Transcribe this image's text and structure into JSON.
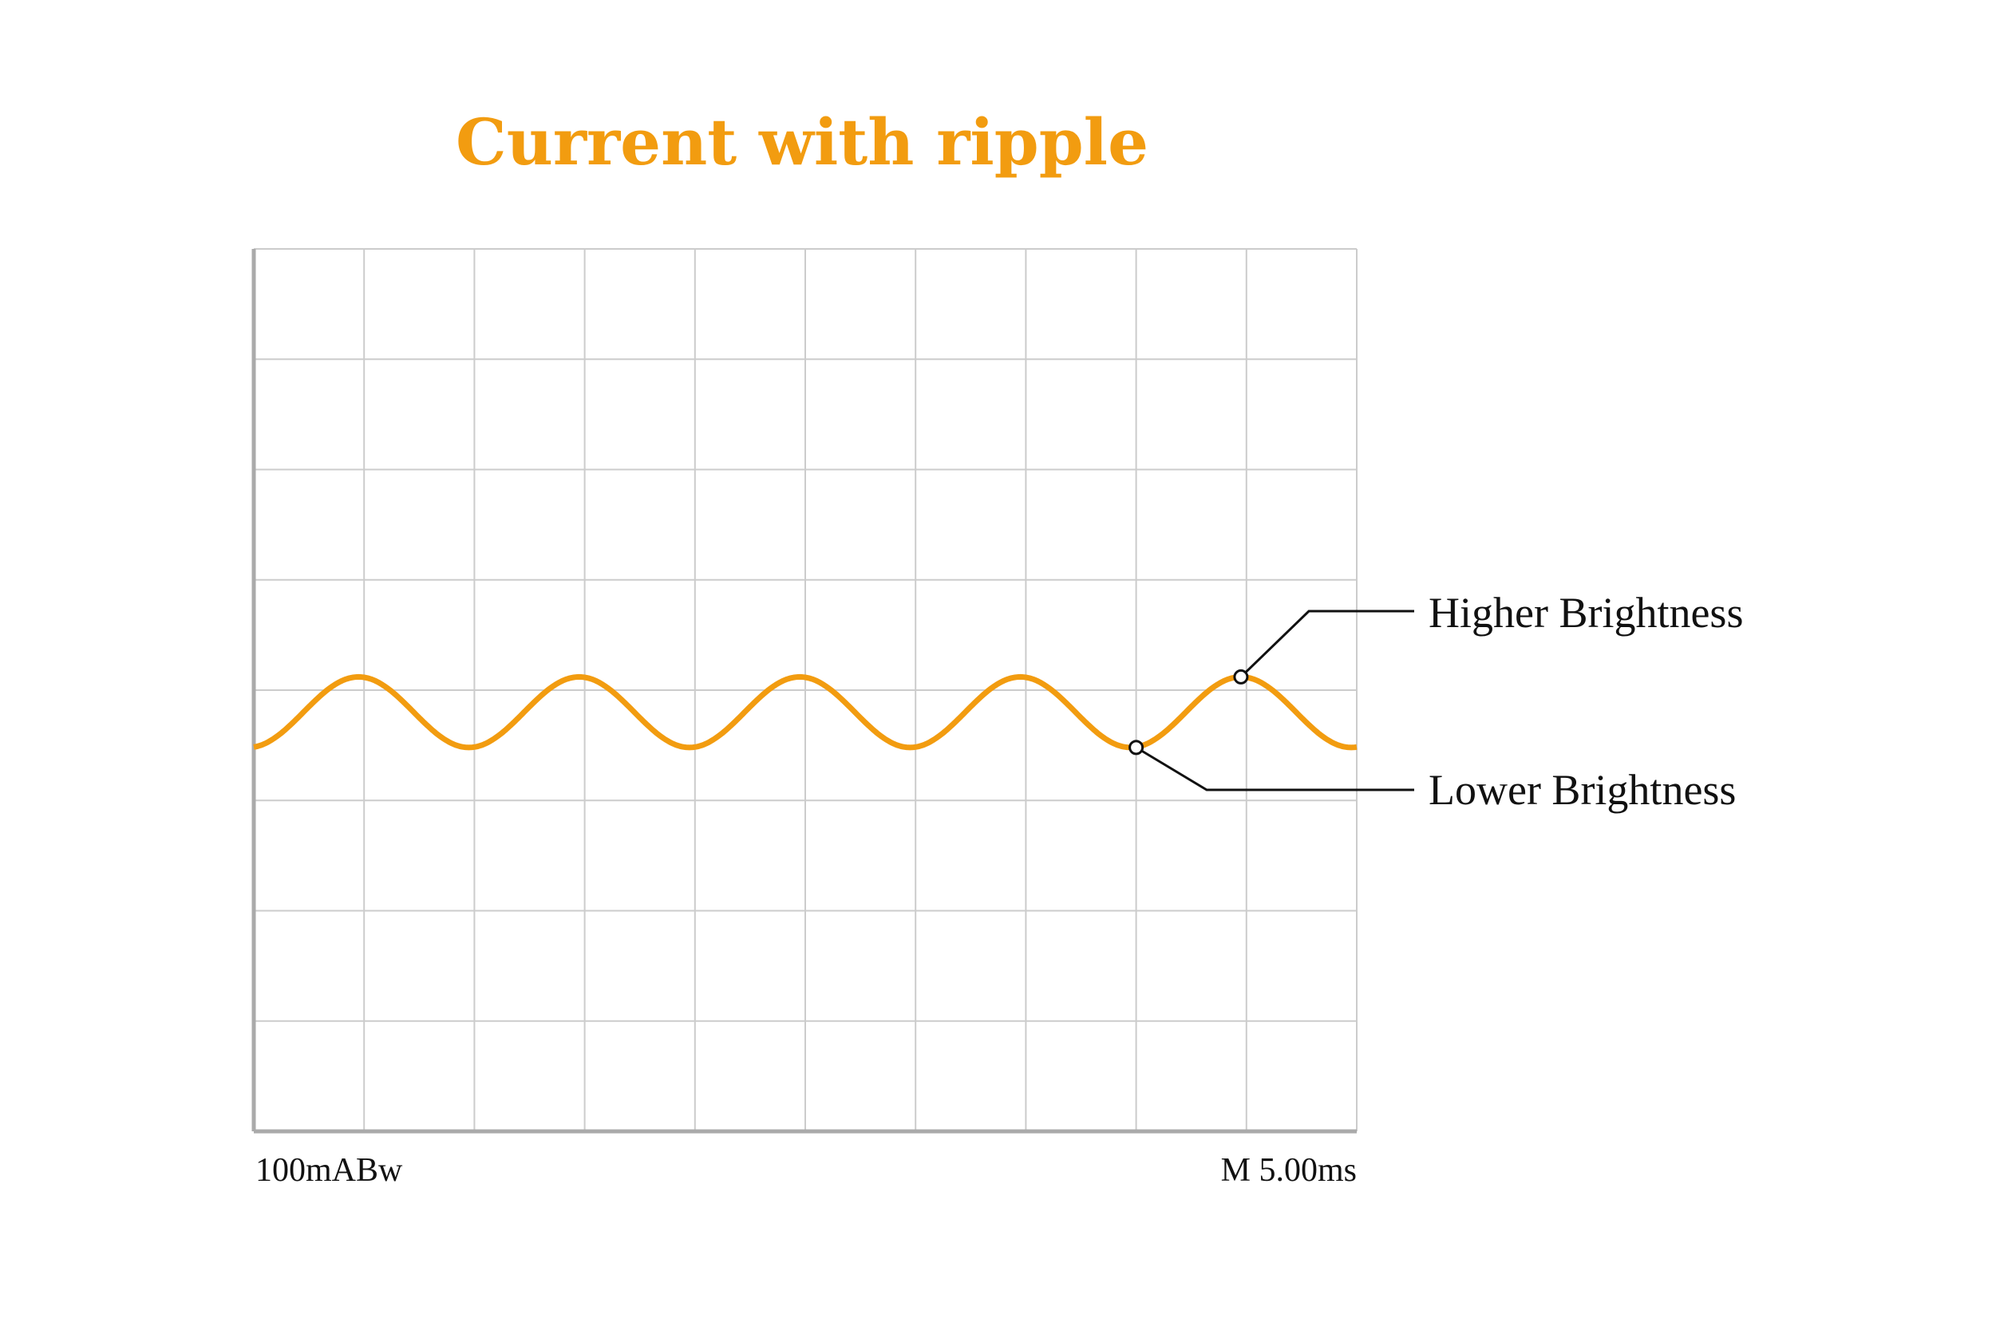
{
  "chart_data": {
    "type": "line",
    "title": "Current with ripple",
    "grid": true,
    "scope_labels": {
      "channel_scale": "100mABw",
      "timebase": "M 5.00ms"
    },
    "xlim": [
      0,
      10
    ],
    "ylim": [
      -4,
      4
    ],
    "x_unit": "divisions",
    "y_unit": "divisions",
    "series": [
      {
        "color": "#f29c10",
        "waveform": "sine",
        "offset_div": -0.2,
        "amplitude_div": 0.32,
        "period_div": 2.0,
        "peaks_x": [
          0.95,
          2.95,
          4.95,
          6.95,
          8.95
        ],
        "troughs_x": [
          1.95,
          3.95,
          5.95,
          7.95,
          9.95
        ]
      }
    ],
    "annotations": [
      {
        "text": "Higher Brightness",
        "x": 8.95,
        "y": 0.12
      },
      {
        "text": "Lower Brightness",
        "x": 8.0,
        "y": -0.52
      }
    ]
  },
  "colors": {
    "trace": "#f29c10",
    "title": "#f29c10",
    "grid": "#cccccc",
    "axis": "#aaaaaa",
    "marker_edge": "#111111"
  }
}
